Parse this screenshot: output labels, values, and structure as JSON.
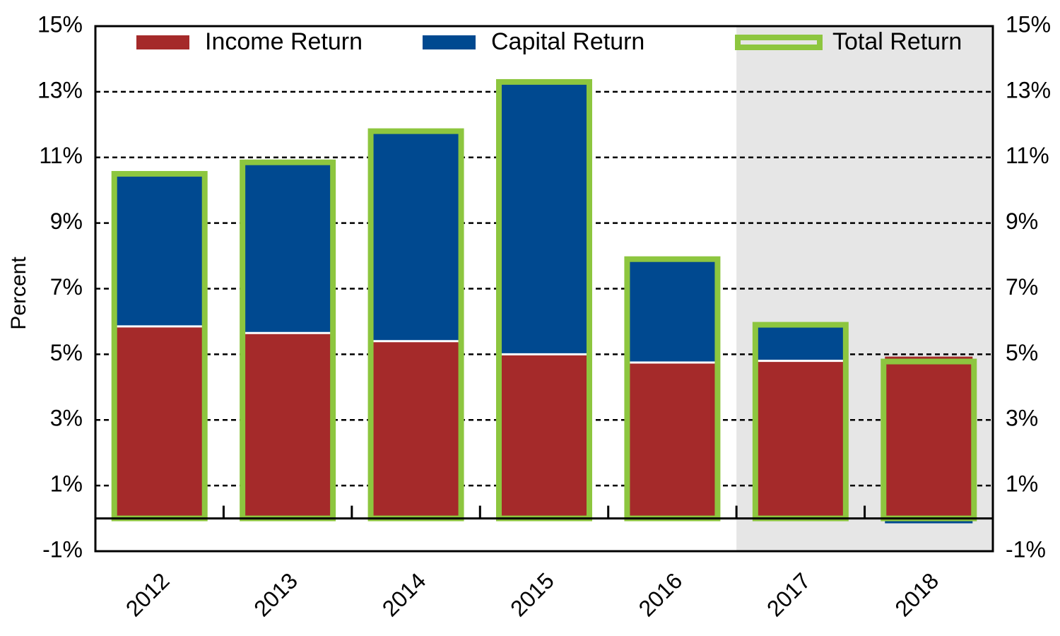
{
  "chart_data": {
    "type": "bar",
    "stacked": true,
    "y_label": "Percent",
    "categories": [
      "2012",
      "2013",
      "2014",
      "2015",
      "2016",
      "2017",
      "2018"
    ],
    "series": [
      {
        "name": "Income Return",
        "color": "#a52a2a",
        "values": [
          5.85,
          5.65,
          5.4,
          5.0,
          4.75,
          4.8,
          4.93
        ]
      },
      {
        "name": "Capital Return",
        "color": "#004990",
        "values": [
          4.65,
          5.2,
          6.4,
          8.3,
          3.15,
          1.1,
          -0.15
        ]
      },
      {
        "name": "Total Return",
        "color": "#8dc63f",
        "style": "outline",
        "values": [
          10.5,
          10.85,
          11.8,
          13.3,
          7.9,
          5.9,
          4.78
        ]
      }
    ],
    "shaded_categories": [
      "2017",
      "2018"
    ],
    "shade_color": "#e6e6e6",
    "ylim": [
      -1,
      15
    ],
    "yticks": [
      {
        "value": -1,
        "label": "-1%"
      },
      {
        "value": 1,
        "label": "1%"
      },
      {
        "value": 3,
        "label": "3%"
      },
      {
        "value": 5,
        "label": "5%"
      },
      {
        "value": 7,
        "label": "7%"
      },
      {
        "value": 9,
        "label": "9%"
      },
      {
        "value": 11,
        "label": "11%"
      },
      {
        "value": 13,
        "label": "13%"
      },
      {
        "value": 15,
        "label": "15%"
      }
    ],
    "y2lim": [
      -1,
      15
    ],
    "y2ticks": [
      {
        "value": -1,
        "label": "-1%"
      },
      {
        "value": 1,
        "label": "1%"
      },
      {
        "value": 3,
        "label": "3%"
      },
      {
        "value": 5,
        "label": "5%"
      },
      {
        "value": 7,
        "label": "7%"
      },
      {
        "value": 9,
        "label": "9%"
      },
      {
        "value": 11,
        "label": "11%"
      },
      {
        "value": 13,
        "label": "13%"
      },
      {
        "value": 15,
        "label": "15%"
      }
    ],
    "grid": true,
    "grid_style": "dashed",
    "legend": "top"
  }
}
